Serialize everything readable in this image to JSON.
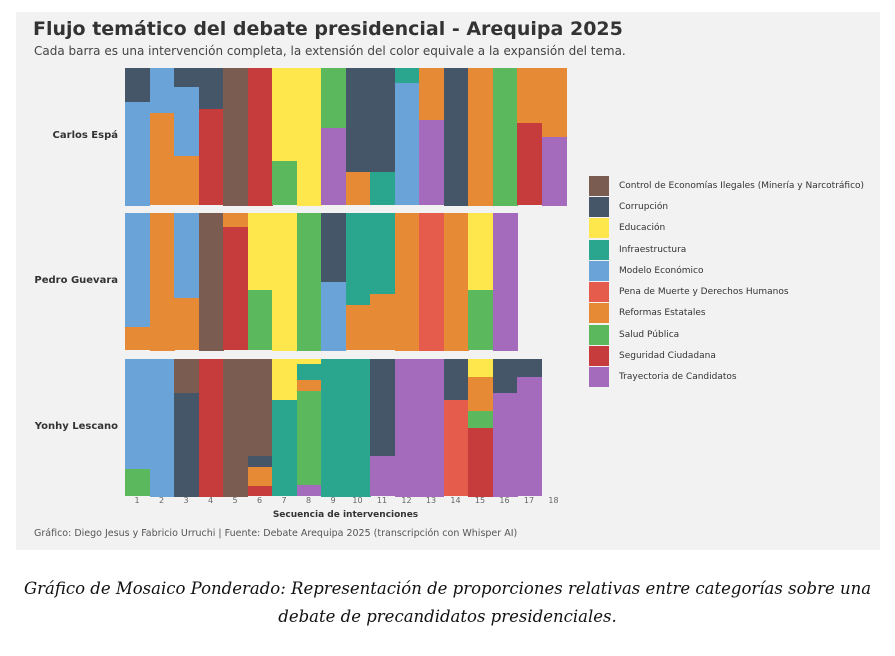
{
  "chart_data": {
    "type": "bar",
    "subtype": "stacked mosaic (100% per intervention)",
    "title": "Flujo temático del debate presidencial - Arequipa 2025",
    "subtitle": "Cada barra es una intervención completa, la extensión del color equivale a la expansión del tema.",
    "xlabel": "Secuencia de intervenciones",
    "x_ticks": [
      "1",
      "2",
      "3",
      "4",
      "5",
      "6",
      "7",
      "8",
      "9",
      "10",
      "11",
      "12",
      "13",
      "14",
      "15",
      "16",
      "17",
      "18"
    ],
    "source": "Gráfico: Diego Jesus y Fabricio Urruchi | Fuente: Debate Arequipa 2025 (transcripción con Whisper AI)",
    "legend_position": "right",
    "categories": [
      {
        "name": "Control de Economías Ilegales (Minería y Narcotráfico)",
        "color": "#7a5c50"
      },
      {
        "name": "Corrupción",
        "color": "#465669"
      },
      {
        "name": "Educación",
        "color": "#fde74c"
      },
      {
        "name": "Infraestructura",
        "color": "#2aa68f"
      },
      {
        "name": "Modelo Económico",
        "color": "#6aa3d8"
      },
      {
        "name": "Pena de Muerte y Derechos Humanos",
        "color": "#e55c4d"
      },
      {
        "name": "Reformas Estatales",
        "color": "#e78a35"
      },
      {
        "name": "Salud Pública",
        "color": "#5cb85c"
      },
      {
        "name": "Seguridad Ciudadana",
        "color": "#c63c3d"
      },
      {
        "name": "Trayectoria de Candidatos",
        "color": "#a46bbd"
      }
    ],
    "candidates": [
      {
        "name": "Carlos Espá",
        "interventions": [
          [
            [
              "Corrupción",
              25
            ],
            [
              "Modelo Económico",
              75
            ]
          ],
          [
            [
              "Modelo Económico",
              33
            ],
            [
              "Reformas Estatales",
              67
            ]
          ],
          [
            [
              "Corrupción",
              14
            ],
            [
              "Modelo Económico",
              50
            ],
            [
              "Reformas Estatales",
              36
            ]
          ],
          [
            [
              "Corrupción",
              30
            ],
            [
              "Seguridad Ciudadana",
              70
            ]
          ],
          [
            [
              "Control de Economías Ilegales (Minería y Narcotráfico)",
              100
            ]
          ],
          [
            [
              "Seguridad Ciudadana",
              100
            ]
          ],
          [
            [
              "Educación",
              68
            ],
            [
              "Salud Pública",
              32
            ]
          ],
          [
            [
              "Educación",
              100
            ]
          ],
          [
            [
              "Salud Pública",
              44
            ],
            [
              "Trayectoria de Candidatos",
              56
            ]
          ],
          [
            [
              "Corrupción",
              76
            ],
            [
              "Reformas Estatales",
              24
            ]
          ],
          [
            [
              "Corrupción",
              76
            ],
            [
              "Infraestructura",
              24
            ]
          ],
          [
            [
              "Infraestructura",
              11
            ],
            [
              "Modelo Económico",
              89
            ]
          ],
          [
            [
              "Reformas Estatales",
              38
            ],
            [
              "Trayectoria de Candidatos",
              62
            ]
          ],
          [
            [
              "Corrupción",
              100
            ]
          ],
          [
            [
              "Reformas Estatales",
              100
            ]
          ],
          [
            [
              "Salud Pública",
              100
            ]
          ],
          [
            [
              "Reformas Estatales",
              40
            ],
            [
              "Seguridad Ciudadana",
              60
            ]
          ],
          [
            [
              "Reformas Estatales",
              50
            ],
            [
              "Trayectoria de Candidatos",
              50
            ]
          ]
        ]
      },
      {
        "name": "Pedro Guevara",
        "interventions": [
          [
            [
              "Modelo Económico",
              83
            ],
            [
              "Reformas Estatales",
              17
            ]
          ],
          [
            [
              "Reformas Estatales",
              100
            ]
          ],
          [
            [
              "Modelo Económico",
              62
            ],
            [
              "Reformas Estatales",
              38
            ]
          ],
          [
            [
              "Control de Economías Ilegales (Minería y Narcotráfico)",
              100
            ]
          ],
          [
            [
              "Reformas Estatales",
              10
            ],
            [
              "Seguridad Ciudadana",
              90
            ]
          ],
          [
            [
              "Educación",
              56
            ],
            [
              "Salud Pública",
              44
            ]
          ],
          [
            [
              "Educación",
              100
            ]
          ],
          [
            [
              "Salud Pública",
              100
            ]
          ],
          [
            [
              "Corrupción",
              50
            ],
            [
              "Modelo Económico",
              50
            ]
          ],
          [
            [
              "Infraestructura",
              67
            ],
            [
              "Reformas Estatales",
              33
            ]
          ],
          [
            [
              "Infraestructura",
              59
            ],
            [
              "Reformas Estatales",
              41
            ]
          ],
          [
            [
              "Reformas Estatales",
              100
            ]
          ],
          [
            [
              "Pena de Muerte y Derechos Humanos",
              100
            ]
          ],
          [
            [
              "Reformas Estatales",
              100
            ]
          ],
          [
            [
              "Educación",
              56
            ],
            [
              "Salud Pública",
              44
            ]
          ],
          [
            [
              "Trayectoria de Candidatos",
              100
            ]
          ]
        ]
      },
      {
        "name": "Yonhy Lescano",
        "interventions": [
          [
            [
              "Modelo Económico",
              80
            ],
            [
              "Salud Pública",
              20
            ]
          ],
          [
            [
              "Modelo Económico",
              100
            ]
          ],
          [
            [
              "Control de Economías Ilegales (Minería y Narcotráfico)",
              25
            ],
            [
              "Corrupción",
              75
            ]
          ],
          [
            [
              "Seguridad Ciudadana",
              100
            ]
          ],
          [
            [
              "Control de Economías Ilegales (Minería y Narcotráfico)",
              100
            ]
          ],
          [
            [
              "Control de Economías Ilegales (Minería y Narcotráfico)",
              71
            ],
            [
              "Corrupción",
              8
            ],
            [
              "Reformas Estatales",
              14
            ],
            [
              "Seguridad Ciudadana",
              7
            ]
          ],
          [
            [
              "Educación",
              30
            ],
            [
              "Infraestructura",
              70
            ]
          ],
          [
            [
              "Educación",
              4
            ],
            [
              "Infraestructura",
              11
            ],
            [
              "Reformas Estatales",
              8
            ],
            [
              "Salud Pública",
              69
            ],
            [
              "Trayectoria de Candidatos",
              8
            ]
          ],
          [
            [
              "Infraestructura",
              100
            ]
          ],
          [
            [
              "Infraestructura",
              100
            ]
          ],
          [
            [
              "Corrupción",
              71
            ],
            [
              "Trayectoria de Candidatos",
              29
            ]
          ],
          [
            [
              "Trayectoria de Candidatos",
              100
            ]
          ],
          [
            [
              "Trayectoria de Candidatos",
              100
            ]
          ],
          [
            [
              "Corrupción",
              30
            ],
            [
              "Pena de Muerte y Derechos Humanos",
              70
            ]
          ],
          [
            [
              "Educación",
              13
            ],
            [
              "Reformas Estatales",
              25
            ],
            [
              "Salud Pública",
              12
            ],
            [
              "Seguridad Ciudadana",
              50
            ]
          ],
          [
            [
              "Corrupción",
              25
            ],
            [
              "Trayectoria de Candidatos",
              75
            ]
          ],
          [
            [
              "Corrupción",
              13
            ],
            [
              "Trayectoria de Candidatos",
              87
            ]
          ]
        ]
      }
    ]
  },
  "caption": "Gráfico de Mosaico Ponderado: Representación de proporciones relativas entre categorías sobre una debate de precandidatos presidenciales."
}
